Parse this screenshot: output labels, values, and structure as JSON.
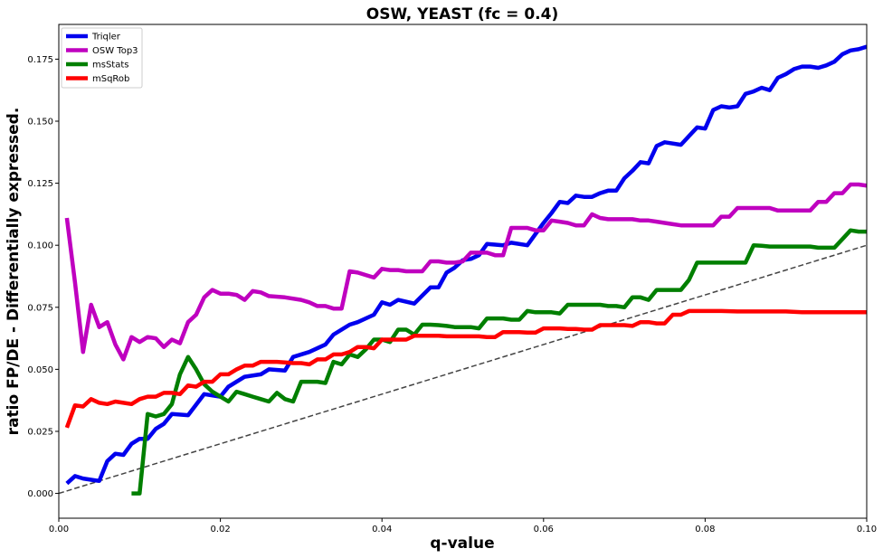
{
  "chart_data": {
    "type": "line",
    "title": "OSW, YEAST (fc = 0.4)",
    "xlabel": "q-value",
    "ylabel": "ratio FP/DE - Differentially expressed.",
    "xlim": [
      0.0,
      0.1
    ],
    "ylim": [
      -0.01,
      0.189
    ],
    "xticks": [
      "0.00",
      "0.02",
      "0.04",
      "0.06",
      "0.08",
      "0.10"
    ],
    "yticks": [
      "0.000",
      "0.025",
      "0.050",
      "0.075",
      "0.100",
      "0.125",
      "0.150",
      "0.175"
    ],
    "grid": false,
    "legend_position": "top-left",
    "reference_line": {
      "style": "dashed",
      "color": "#444444",
      "x": [
        0.0,
        0.1
      ],
      "y": [
        0.0,
        0.1
      ]
    },
    "series": [
      {
        "name": "Triqler",
        "color": "#0000ee",
        "x": [
          0.001,
          0.002,
          0.003,
          0.004,
          0.005,
          0.006,
          0.007,
          0.008,
          0.009,
          0.01,
          0.011,
          0.012,
          0.013,
          0.014,
          0.016,
          0.018,
          0.02,
          0.021,
          0.023,
          0.025,
          0.026,
          0.028,
          0.029,
          0.031,
          0.033,
          0.034,
          0.036,
          0.037,
          0.039,
          0.04,
          0.041,
          0.042,
          0.044,
          0.046,
          0.047,
          0.048,
          0.049,
          0.05,
          0.051,
          0.052,
          0.053,
          0.055,
          0.056,
          0.058,
          0.06,
          0.061,
          0.062,
          0.063,
          0.064,
          0.065,
          0.066,
          0.067,
          0.068,
          0.069,
          0.07,
          0.071,
          0.072,
          0.073,
          0.074,
          0.075,
          0.076,
          0.077,
          0.078,
          0.079,
          0.08,
          0.081,
          0.082,
          0.083,
          0.084,
          0.085,
          0.086,
          0.087,
          0.088,
          0.089,
          0.09,
          0.091,
          0.092,
          0.093,
          0.094,
          0.095,
          0.096,
          0.097,
          0.098,
          0.099,
          0.1
        ],
        "y": [
          0.004,
          0.007,
          0.006,
          0.0055,
          0.005,
          0.013,
          0.016,
          0.0155,
          0.02,
          0.022,
          0.022,
          0.026,
          0.028,
          0.032,
          0.0315,
          0.04,
          0.039,
          0.043,
          0.047,
          0.048,
          0.05,
          0.0495,
          0.055,
          0.057,
          0.06,
          0.064,
          0.068,
          0.069,
          0.072,
          0.077,
          0.076,
          0.078,
          0.0765,
          0.083,
          0.083,
          0.089,
          0.091,
          0.094,
          0.0945,
          0.096,
          0.1005,
          0.1,
          0.101,
          0.1,
          0.109,
          0.113,
          0.1175,
          0.117,
          0.12,
          0.1195,
          0.1195,
          0.121,
          0.122,
          0.122,
          0.127,
          0.13,
          0.1335,
          0.133,
          0.14,
          0.1415,
          0.141,
          0.1405,
          0.144,
          0.1475,
          0.147,
          0.1545,
          0.156,
          0.1555,
          0.156,
          0.161,
          0.162,
          0.1635,
          0.1625,
          0.1675,
          0.169,
          0.171,
          0.172,
          0.172,
          0.1715,
          0.1725,
          0.174,
          0.177,
          0.1785,
          0.179,
          0.18
        ]
      },
      {
        "name": "OSW Top3",
        "color": "#bf00bf",
        "x": [
          0.001,
          0.002,
          0.003,
          0.004,
          0.005,
          0.006,
          0.007,
          0.008,
          0.009,
          0.01,
          0.011,
          0.012,
          0.013,
          0.014,
          0.015,
          0.016,
          0.017,
          0.018,
          0.019,
          0.02,
          0.021,
          0.022,
          0.023,
          0.024,
          0.025,
          0.026,
          0.028,
          0.03,
          0.031,
          0.032,
          0.033,
          0.034,
          0.035,
          0.036,
          0.037,
          0.038,
          0.039,
          0.04,
          0.041,
          0.042,
          0.043,
          0.044,
          0.045,
          0.046,
          0.047,
          0.048,
          0.049,
          0.05,
          0.051,
          0.052,
          0.053,
          0.054,
          0.055,
          0.056,
          0.057,
          0.058,
          0.059,
          0.06,
          0.061,
          0.062,
          0.063,
          0.064,
          0.065,
          0.066,
          0.067,
          0.068,
          0.069,
          0.07,
          0.071,
          0.072,
          0.073,
          0.074,
          0.075,
          0.076,
          0.077,
          0.078,
          0.079,
          0.08,
          0.081,
          0.082,
          0.083,
          0.084,
          0.085,
          0.086,
          0.087,
          0.088,
          0.089,
          0.09,
          0.091,
          0.092,
          0.093,
          0.094,
          0.095,
          0.096,
          0.097,
          0.098,
          0.099,
          0.1
        ],
        "y": [
          0.111,
          0.085,
          0.057,
          0.076,
          0.067,
          0.069,
          0.06,
          0.054,
          0.063,
          0.061,
          0.063,
          0.0625,
          0.059,
          0.062,
          0.0605,
          0.069,
          0.072,
          0.079,
          0.082,
          0.0805,
          0.0805,
          0.08,
          0.078,
          0.0815,
          0.081,
          0.0795,
          0.079,
          0.078,
          0.077,
          0.0755,
          0.0755,
          0.0745,
          0.0745,
          0.0895,
          0.089,
          0.088,
          0.087,
          0.0905,
          0.09,
          0.09,
          0.0895,
          0.0895,
          0.0895,
          0.0935,
          0.0935,
          0.093,
          0.093,
          0.0935,
          0.097,
          0.097,
          0.097,
          0.096,
          0.096,
          0.107,
          0.107,
          0.107,
          0.106,
          0.106,
          0.11,
          0.1095,
          0.109,
          0.108,
          0.108,
          0.1125,
          0.111,
          0.1105,
          0.1105,
          0.1105,
          0.1105,
          0.11,
          0.11,
          0.1095,
          0.109,
          0.1085,
          0.108,
          0.108,
          0.108,
          0.108,
          0.108,
          0.1115,
          0.1115,
          0.115,
          0.115,
          0.115,
          0.115,
          0.115,
          0.114,
          0.114,
          0.114,
          0.114,
          0.114,
          0.1175,
          0.1175,
          0.121,
          0.121,
          0.1245,
          0.1245,
          0.124
        ]
      },
      {
        "name": "msStats",
        "color": "#007f00",
        "x": [
          0.009,
          0.01,
          0.011,
          0.012,
          0.013,
          0.014,
          0.015,
          0.016,
          0.017,
          0.018,
          0.019,
          0.02,
          0.021,
          0.022,
          0.023,
          0.024,
          0.025,
          0.026,
          0.027,
          0.028,
          0.029,
          0.03,
          0.031,
          0.032,
          0.033,
          0.034,
          0.035,
          0.036,
          0.037,
          0.038,
          0.039,
          0.04,
          0.041,
          0.042,
          0.043,
          0.044,
          0.045,
          0.046,
          0.047,
          0.048,
          0.049,
          0.05,
          0.051,
          0.052,
          0.053,
          0.054,
          0.055,
          0.056,
          0.057,
          0.058,
          0.059,
          0.06,
          0.061,
          0.062,
          0.063,
          0.064,
          0.065,
          0.066,
          0.067,
          0.068,
          0.069,
          0.07,
          0.071,
          0.072,
          0.073,
          0.074,
          0.075,
          0.076,
          0.077,
          0.078,
          0.079,
          0.08,
          0.081,
          0.082,
          0.083,
          0.084,
          0.085,
          0.086,
          0.087,
          0.088,
          0.089,
          0.09,
          0.091,
          0.092,
          0.093,
          0.094,
          0.095,
          0.096,
          0.097,
          0.098,
          0.099,
          0.1
        ],
        "y": [
          0.0,
          0.0,
          0.032,
          0.031,
          0.032,
          0.036,
          0.048,
          0.055,
          0.05,
          0.044,
          0.041,
          0.039,
          0.037,
          0.041,
          0.04,
          0.039,
          0.038,
          0.037,
          0.0405,
          0.038,
          0.037,
          0.045,
          0.045,
          0.045,
          0.0445,
          0.053,
          0.052,
          0.056,
          0.055,
          0.058,
          0.062,
          0.062,
          0.061,
          0.066,
          0.066,
          0.064,
          0.068,
          0.068,
          0.0678,
          0.0675,
          0.067,
          0.067,
          0.067,
          0.0665,
          0.0705,
          0.0705,
          0.0705,
          0.07,
          0.07,
          0.0735,
          0.073,
          0.073,
          0.073,
          0.0725,
          0.076,
          0.076,
          0.076,
          0.076,
          0.076,
          0.0755,
          0.0755,
          0.075,
          0.079,
          0.079,
          0.078,
          0.082,
          0.082,
          0.082,
          0.082,
          0.086,
          0.093,
          0.093,
          0.093,
          0.093,
          0.093,
          0.093,
          0.093,
          0.1,
          0.0998,
          0.0995,
          0.0995,
          0.0995,
          0.0995,
          0.0995,
          0.0995,
          0.099,
          0.099,
          0.099,
          0.1025,
          0.106,
          0.1055,
          0.1055
        ]
      },
      {
        "name": "mSqRob",
        "color": "#ff0000",
        "x": [
          0.001,
          0.002,
          0.003,
          0.004,
          0.005,
          0.006,
          0.007,
          0.008,
          0.009,
          0.01,
          0.011,
          0.012,
          0.013,
          0.014,
          0.015,
          0.016,
          0.017,
          0.018,
          0.019,
          0.02,
          0.021,
          0.022,
          0.023,
          0.024,
          0.025,
          0.026,
          0.027,
          0.028,
          0.029,
          0.03,
          0.031,
          0.032,
          0.033,
          0.034,
          0.035,
          0.036,
          0.037,
          0.038,
          0.039,
          0.04,
          0.041,
          0.042,
          0.043,
          0.044,
          0.045,
          0.046,
          0.047,
          0.048,
          0.049,
          0.05,
          0.051,
          0.052,
          0.053,
          0.054,
          0.055,
          0.056,
          0.057,
          0.058,
          0.059,
          0.06,
          0.061,
          0.062,
          0.063,
          0.064,
          0.065,
          0.066,
          0.067,
          0.068,
          0.069,
          0.07,
          0.071,
          0.072,
          0.073,
          0.074,
          0.075,
          0.076,
          0.077,
          0.078,
          0.08,
          0.082,
          0.084,
          0.086,
          0.088,
          0.09,
          0.092,
          0.094,
          0.096,
          0.098,
          0.1
        ],
        "y": [
          0.0265,
          0.0355,
          0.035,
          0.038,
          0.0365,
          0.036,
          0.037,
          0.0365,
          0.036,
          0.038,
          0.039,
          0.039,
          0.0405,
          0.0405,
          0.04,
          0.0435,
          0.043,
          0.045,
          0.045,
          0.048,
          0.048,
          0.05,
          0.0515,
          0.0515,
          0.053,
          0.053,
          0.053,
          0.0528,
          0.0525,
          0.0525,
          0.052,
          0.054,
          0.054,
          0.056,
          0.056,
          0.057,
          0.059,
          0.059,
          0.0585,
          0.062,
          0.062,
          0.062,
          0.062,
          0.0635,
          0.0635,
          0.0635,
          0.0635,
          0.0633,
          0.0633,
          0.0633,
          0.0633,
          0.0633,
          0.063,
          0.063,
          0.065,
          0.065,
          0.065,
          0.0648,
          0.0648,
          0.0665,
          0.0665,
          0.0665,
          0.0663,
          0.0663,
          0.066,
          0.066,
          0.0678,
          0.0678,
          0.0678,
          0.0678,
          0.0675,
          0.069,
          0.069,
          0.0685,
          0.0685,
          0.072,
          0.072,
          0.0735,
          0.0735,
          0.0735,
          0.0733,
          0.0733,
          0.0733,
          0.0733,
          0.073,
          0.073,
          0.073,
          0.073,
          0.073
        ]
      }
    ]
  }
}
